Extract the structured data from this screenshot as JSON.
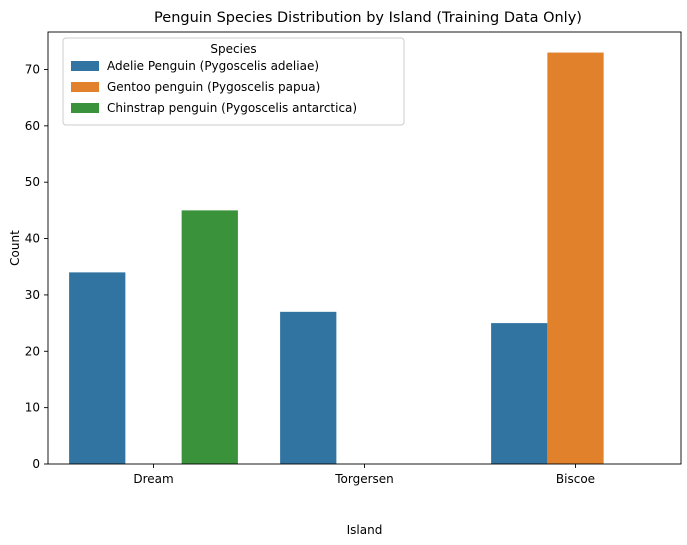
{
  "chart_data": {
    "type": "bar",
    "title": "Penguin Species Distribution by Island (Training Data Only)",
    "xlabel": "Island",
    "ylabel": "Count",
    "categories": [
      "Dream",
      "Torgersen",
      "Biscoe"
    ],
    "ylim": [
      0,
      76.65
    ],
    "yticks": [
      0,
      10,
      20,
      30,
      40,
      50,
      60,
      70
    ],
    "grid": false,
    "legend": {
      "title": "Species",
      "placement": "top-left"
    },
    "series": [
      {
        "name": "Adelie Penguin (Pygoscelis adeliae)",
        "color": "#3274a1",
        "values": [
          34,
          27,
          25
        ]
      },
      {
        "name": "Gentoo penguin (Pygoscelis papua)",
        "color": "#e1812c",
        "values": [
          0,
          0,
          73
        ]
      },
      {
        "name": "Chinstrap penguin (Pygoscelis antarctica)",
        "color": "#3a923a",
        "values": [
          45,
          0,
          0
        ]
      }
    ]
  }
}
